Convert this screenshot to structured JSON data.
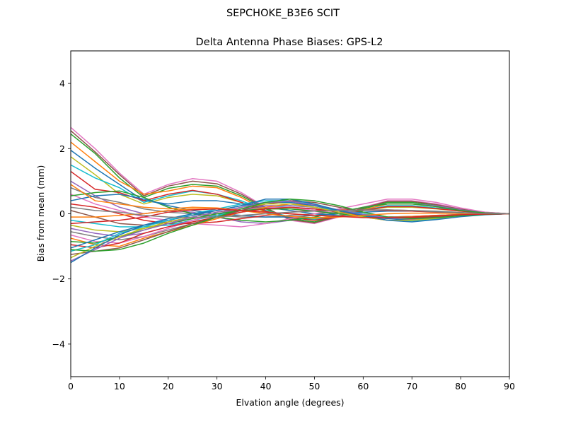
{
  "chart_data": {
    "type": "line",
    "suptitle": "SEPCHOKE_B3E6   SCIT",
    "title": "Delta Antenna Phase Biases: GPS-L2",
    "xlabel": "Elvation angle (degrees)",
    "ylabel": "Bias from mean (mm)",
    "xlim": [
      0,
      90
    ],
    "ylim": [
      -5,
      5
    ],
    "xticks": [
      0,
      10,
      20,
      30,
      40,
      50,
      60,
      70,
      80,
      90
    ],
    "xtick_labels": [
      "0",
      "10",
      "20",
      "30",
      "40",
      "50",
      "60",
      "70",
      "80",
      "90"
    ],
    "yticks": [
      -4,
      -2,
      0,
      2,
      4
    ],
    "ytick_labels": [
      "−4",
      "−2",
      "0",
      "2",
      "4"
    ],
    "grid": false,
    "x": [
      0,
      5,
      10,
      15,
      20,
      25,
      30,
      35,
      40,
      45,
      50,
      55,
      60,
      65,
      70,
      75,
      80,
      85,
      90
    ],
    "series": [
      {
        "color": "#e377c2",
        "values": [
          2.65,
          2.0,
          1.25,
          0.6,
          0.9,
          1.08,
          1.0,
          0.65,
          0.2,
          -0.2,
          -0.3,
          -0.1,
          0.2,
          0.4,
          0.4,
          0.3,
          0.15,
          0.05,
          0.0
        ]
      },
      {
        "color": "#8c564b",
        "values": [
          2.55,
          1.9,
          1.2,
          0.55,
          0.85,
          1.0,
          0.92,
          0.6,
          0.18,
          -0.18,
          -0.28,
          -0.08,
          0.18,
          0.38,
          0.38,
          0.28,
          0.14,
          0.04,
          0.0
        ]
      },
      {
        "color": "#2ca02c",
        "values": [
          2.45,
          1.85,
          1.1,
          0.5,
          0.78,
          0.9,
          0.85,
          0.55,
          0.15,
          -0.15,
          -0.25,
          -0.05,
          0.15,
          0.35,
          0.35,
          0.25,
          0.12,
          0.04,
          0.0
        ]
      },
      {
        "color": "#ff7f0e",
        "values": [
          2.2,
          1.6,
          1.0,
          0.6,
          0.7,
          0.85,
          0.8,
          0.5,
          0.1,
          -0.1,
          -0.2,
          -0.05,
          0.12,
          0.3,
          0.3,
          0.22,
          0.1,
          0.03,
          0.0
        ]
      },
      {
        "color": "#1f77b4",
        "values": [
          1.95,
          1.4,
          0.9,
          0.4,
          0.3,
          0.4,
          0.4,
          0.3,
          0.2,
          0.1,
          0.0,
          -0.05,
          -0.1,
          -0.1,
          -0.08,
          -0.05,
          -0.02,
          -0.01,
          0.0
        ]
      },
      {
        "color": "#bcbd22",
        "values": [
          1.75,
          1.2,
          0.6,
          0.3,
          0.5,
          0.6,
          0.55,
          0.35,
          0.05,
          -0.1,
          -0.15,
          -0.05,
          0.1,
          0.2,
          0.2,
          0.15,
          0.08,
          0.02,
          0.0
        ]
      },
      {
        "color": "#17becf",
        "values": [
          1.5,
          1.1,
          0.8,
          0.35,
          0.55,
          0.7,
          0.6,
          0.4,
          0.1,
          -0.1,
          -0.18,
          -0.06,
          0.1,
          0.25,
          0.25,
          0.18,
          0.09,
          0.03,
          0.0
        ]
      },
      {
        "color": "#d62728",
        "values": [
          1.3,
          0.75,
          0.65,
          0.4,
          0.6,
          0.72,
          0.6,
          0.35,
          0.08,
          -0.12,
          -0.2,
          -0.08,
          0.1,
          0.22,
          0.22,
          0.16,
          0.08,
          0.02,
          0.0
        ]
      },
      {
        "color": "#9467bd",
        "values": [
          1.0,
          0.55,
          0.2,
          0.0,
          0.1,
          0.05,
          -0.1,
          -0.25,
          -0.3,
          -0.2,
          -0.1,
          0.05,
          0.2,
          0.3,
          0.3,
          0.25,
          0.12,
          0.04,
          0.0
        ]
      },
      {
        "color": "#7f7f7f",
        "values": [
          0.8,
          0.5,
          0.35,
          0.15,
          0.05,
          0.0,
          -0.05,
          -0.1,
          -0.1,
          -0.05,
          0.0,
          0.05,
          0.1,
          0.12,
          0.1,
          0.08,
          0.04,
          0.01,
          0.0
        ]
      },
      {
        "color": "#e377c2",
        "values": [
          0.6,
          0.3,
          0.1,
          -0.1,
          -0.2,
          -0.3,
          -0.35,
          -0.4,
          -0.3,
          -0.15,
          0.0,
          0.15,
          0.3,
          0.45,
          0.45,
          0.35,
          0.18,
          0.05,
          0.0
        ]
      },
      {
        "color": "#2ca02c",
        "values": [
          0.55,
          0.65,
          0.7,
          0.5,
          0.2,
          0.0,
          -0.1,
          -0.2,
          -0.25,
          -0.2,
          -0.1,
          0.05,
          0.2,
          0.3,
          0.3,
          0.22,
          0.1,
          0.03,
          0.0
        ]
      },
      {
        "color": "#1f77b4",
        "values": [
          0.4,
          0.55,
          0.6,
          0.45,
          0.25,
          0.1,
          0.0,
          -0.05,
          -0.1,
          -0.1,
          -0.05,
          0.0,
          0.05,
          0.08,
          0.08,
          0.06,
          0.03,
          0.01,
          0.0
        ]
      },
      {
        "color": "#d62728",
        "values": [
          0.3,
          0.2,
          0.0,
          -0.2,
          -0.3,
          -0.3,
          -0.25,
          -0.15,
          -0.05,
          0.05,
          0.1,
          0.12,
          0.12,
          0.1,
          0.08,
          0.05,
          0.02,
          0.01,
          0.0
        ]
      },
      {
        "color": "#8c564b",
        "values": [
          0.1,
          -0.1,
          -0.3,
          -0.35,
          -0.25,
          -0.1,
          0.05,
          0.15,
          0.2,
          0.2,
          0.15,
          0.05,
          -0.05,
          -0.1,
          -0.1,
          -0.07,
          -0.03,
          -0.01,
          0.0
        ]
      },
      {
        "color": "#ff7f0e",
        "values": [
          -0.1,
          -0.1,
          -0.05,
          0.0,
          0.1,
          0.15,
          0.15,
          0.1,
          0.05,
          0.0,
          -0.05,
          -0.08,
          -0.1,
          -0.1,
          -0.08,
          -0.05,
          -0.02,
          -0.01,
          0.0
        ]
      },
      {
        "color": "#17becf",
        "values": [
          -0.2,
          -0.3,
          -0.4,
          -0.4,
          -0.35,
          -0.2,
          -0.05,
          0.1,
          0.2,
          0.25,
          0.2,
          0.1,
          0.0,
          -0.1,
          -0.12,
          -0.1,
          -0.05,
          -0.02,
          0.0
        ]
      },
      {
        "color": "#bcbd22",
        "values": [
          -0.35,
          -0.5,
          -0.55,
          -0.45,
          -0.3,
          -0.15,
          0.0,
          0.1,
          0.15,
          0.15,
          0.1,
          0.0,
          -0.1,
          -0.15,
          -0.15,
          -0.1,
          -0.05,
          -0.02,
          0.0
        ]
      },
      {
        "color": "#9467bd",
        "values": [
          -0.45,
          -0.6,
          -0.7,
          -0.6,
          -0.4,
          -0.2,
          0.0,
          0.15,
          0.25,
          0.25,
          0.2,
          0.05,
          -0.1,
          -0.2,
          -0.2,
          -0.15,
          -0.07,
          -0.02,
          0.0
        ]
      },
      {
        "color": "#7f7f7f",
        "values": [
          -0.55,
          -0.7,
          -0.8,
          -0.7,
          -0.5,
          -0.3,
          -0.1,
          0.05,
          0.15,
          0.2,
          0.15,
          0.05,
          -0.05,
          -0.1,
          -0.1,
          -0.08,
          -0.04,
          -0.01,
          0.0
        ]
      },
      {
        "color": "#e377c2",
        "values": [
          -0.65,
          -0.85,
          -0.9,
          -0.7,
          -0.45,
          -0.2,
          0.0,
          0.1,
          0.2,
          0.2,
          0.1,
          0.0,
          -0.1,
          -0.15,
          -0.15,
          -0.1,
          -0.05,
          -0.02,
          0.0
        ]
      },
      {
        "color": "#ff7f0e",
        "values": [
          -0.75,
          -0.95,
          -1.0,
          -0.75,
          -0.55,
          -0.35,
          -0.15,
          0.05,
          0.2,
          0.3,
          0.25,
          0.1,
          -0.05,
          -0.15,
          -0.18,
          -0.12,
          -0.06,
          -0.02,
          0.0
        ]
      },
      {
        "color": "#2ca02c",
        "values": [
          -0.85,
          -0.9,
          -0.7,
          -0.5,
          -0.3,
          -0.15,
          0.0,
          0.1,
          0.15,
          0.15,
          0.08,
          0.0,
          -0.08,
          -0.12,
          -0.12,
          -0.08,
          -0.04,
          -0.01,
          0.0
        ]
      },
      {
        "color": "#d62728",
        "values": [
          -0.95,
          -1.05,
          -0.9,
          -0.6,
          -0.4,
          -0.25,
          -0.1,
          0.05,
          0.15,
          0.2,
          0.15,
          0.05,
          -0.05,
          -0.12,
          -0.13,
          -0.1,
          -0.05,
          -0.02,
          0.0
        ]
      },
      {
        "color": "#1f77b4",
        "values": [
          -1.05,
          -0.8,
          -0.55,
          -0.35,
          -0.2,
          -0.05,
          0.1,
          0.25,
          0.35,
          0.35,
          0.25,
          0.1,
          -0.05,
          -0.15,
          -0.2,
          -0.15,
          -0.07,
          -0.02,
          0.0
        ]
      },
      {
        "color": "#17becf",
        "values": [
          -1.15,
          -0.95,
          -0.6,
          -0.4,
          -0.2,
          0.0,
          0.15,
          0.3,
          0.4,
          0.4,
          0.3,
          0.1,
          -0.05,
          -0.2,
          -0.22,
          -0.16,
          -0.08,
          -0.02,
          0.0
        ]
      },
      {
        "color": "#8c564b",
        "values": [
          -1.25,
          -1.15,
          -1.05,
          -0.8,
          -0.55,
          -0.3,
          -0.1,
          0.1,
          0.3,
          0.4,
          0.35,
          0.2,
          0.05,
          -0.1,
          -0.15,
          -0.12,
          -0.06,
          -0.02,
          0.0
        ]
      },
      {
        "color": "#bcbd22",
        "values": [
          -1.35,
          -1.0,
          -0.7,
          -0.45,
          -0.25,
          -0.1,
          0.05,
          0.2,
          0.3,
          0.3,
          0.2,
          0.05,
          -0.1,
          -0.2,
          -0.2,
          -0.14,
          -0.07,
          -0.02,
          0.0
        ]
      },
      {
        "color": "#9467bd",
        "values": [
          -1.45,
          -1.1,
          -0.75,
          -0.5,
          -0.3,
          -0.1,
          0.05,
          0.2,
          0.35,
          0.38,
          0.28,
          0.12,
          -0.02,
          -0.12,
          -0.16,
          -0.12,
          -0.06,
          -0.02,
          0.0
        ]
      },
      {
        "color": "#1f77b4",
        "values": [
          -1.5,
          -1.05,
          -0.65,
          -0.35,
          -0.15,
          0.0,
          0.1,
          0.25,
          0.45,
          0.45,
          0.3,
          0.1,
          -0.05,
          -0.2,
          -0.25,
          -0.18,
          -0.09,
          -0.03,
          0.0
        ]
      },
      {
        "color": "#2ca02c",
        "values": [
          -1.1,
          -1.15,
          -1.1,
          -0.9,
          -0.6,
          -0.35,
          -0.1,
          0.15,
          0.35,
          0.45,
          0.4,
          0.25,
          0.05,
          -0.1,
          -0.15,
          -0.12,
          -0.06,
          -0.02,
          0.0
        ]
      },
      {
        "color": "#ff7f0e",
        "values": [
          0.9,
          0.4,
          0.3,
          0.2,
          0.15,
          0.2,
          0.18,
          0.1,
          0.0,
          -0.08,
          -0.12,
          -0.1,
          -0.05,
          0.0,
          0.02,
          0.02,
          0.01,
          0.0,
          0.0
        ]
      },
      {
        "color": "#d62728",
        "values": [
          -0.3,
          -0.25,
          -0.2,
          -0.1,
          0.05,
          0.12,
          0.15,
          0.1,
          0.05,
          0.0,
          -0.05,
          -0.08,
          -0.12,
          -0.12,
          -0.1,
          -0.06,
          -0.03,
          -0.01,
          0.0
        ]
      },
      {
        "color": "#7f7f7f",
        "values": [
          0.2,
          0.1,
          0.05,
          -0.05,
          -0.1,
          -0.12,
          -0.1,
          -0.05,
          0.0,
          0.05,
          0.08,
          0.1,
          0.12,
          0.12,
          0.1,
          0.06,
          0.03,
          0.01,
          0.0
        ]
      }
    ]
  }
}
